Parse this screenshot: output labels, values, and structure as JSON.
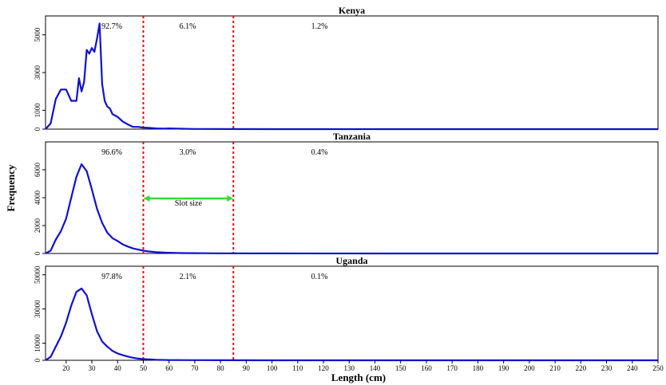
{
  "x_axis": {
    "label": "Length (cm)",
    "ticks": [
      "20",
      "30",
      "40",
      "50",
      "60",
      "70",
      "80",
      "90",
      "100",
      "110",
      "120",
      "130",
      "140",
      "150",
      "160",
      "170",
      "180",
      "190",
      "200",
      "210",
      "220",
      "230",
      "240",
      "250"
    ]
  },
  "y_axis": {
    "label": "Frequency"
  },
  "slot_label": "Slot size",
  "chart_data": [
    {
      "type": "line",
      "title": "Kenya",
      "xlim": [
        12,
        250
      ],
      "ylim": [
        0,
        6000
      ],
      "yticks": [
        "0",
        "1000",
        "3000",
        "5000"
      ],
      "ytick_values": [
        0,
        1000,
        3000,
        5000
      ],
      "slot_lines": [
        50,
        85
      ],
      "percent_labels": [
        "92.7%",
        "6.1%",
        "1.2%"
      ],
      "series": [
        {
          "color": "#1010d0",
          "x": [
            12,
            14,
            16,
            18,
            20,
            22,
            24,
            25,
            26,
            27,
            28,
            29,
            30,
            31,
            32,
            33,
            34,
            35,
            36,
            37,
            38,
            40,
            42,
            44,
            46,
            48,
            50,
            52,
            55,
            58,
            60,
            65,
            70,
            80,
            100,
            150,
            250
          ],
          "y": [
            0,
            300,
            1600,
            2100,
            2100,
            1500,
            1500,
            2700,
            2000,
            2500,
            4200,
            4000,
            4300,
            4100,
            4800,
            5600,
            2400,
            1500,
            1200,
            1100,
            800,
            650,
            400,
            250,
            120,
            120,
            80,
            70,
            40,
            30,
            40,
            20,
            10,
            5,
            2,
            0,
            0
          ]
        }
      ]
    },
    {
      "type": "line",
      "title": "Tanzania",
      "xlim": [
        12,
        250
      ],
      "ylim": [
        0,
        8000
      ],
      "yticks": [
        "0",
        "2000",
        "4000",
        "6000"
      ],
      "ytick_values": [
        0,
        2000,
        4000,
        6000
      ],
      "slot_lines": [
        50,
        85
      ],
      "percent_labels": [
        "96.6%",
        "3.0%",
        "0.4%"
      ],
      "series": [
        {
          "color": "#1010d0",
          "x": [
            12,
            14,
            16,
            18,
            20,
            22,
            24,
            26,
            28,
            30,
            32,
            34,
            36,
            38,
            40,
            42,
            44,
            46,
            48,
            50,
            52,
            55,
            58,
            60,
            65,
            70,
            80,
            100,
            150,
            250
          ],
          "y": [
            0,
            200,
            1000,
            1600,
            2500,
            4000,
            5500,
            6400,
            5900,
            4600,
            3200,
            2200,
            1500,
            1100,
            900,
            650,
            500,
            360,
            280,
            200,
            150,
            100,
            70,
            50,
            30,
            20,
            10,
            5,
            2,
            0
          ]
        }
      ]
    },
    {
      "type": "line",
      "title": "Uganda",
      "xlim": [
        12,
        250
      ],
      "ylim": [
        0,
        55000
      ],
      "yticks": [
        "0",
        "10000",
        "30000",
        "50000"
      ],
      "ytick_values": [
        0,
        10000,
        30000,
        50000
      ],
      "slot_lines": [
        50,
        85
      ],
      "percent_labels": [
        "97.8%",
        "2.1%",
        "0.1%"
      ],
      "series": [
        {
          "color": "#1010d0",
          "x": [
            12,
            14,
            16,
            18,
            20,
            22,
            24,
            26,
            28,
            30,
            32,
            34,
            36,
            38,
            40,
            42,
            44,
            46,
            48,
            50,
            52,
            55,
            60,
            70,
            80,
            100,
            150,
            250
          ],
          "y": [
            0,
            2000,
            8000,
            14000,
            22000,
            32000,
            40000,
            42000,
            38000,
            27000,
            17000,
            11000,
            8000,
            5500,
            4000,
            3000,
            2200,
            1500,
            1000,
            700,
            500,
            300,
            150,
            80,
            30,
            10,
            0,
            0
          ]
        }
      ]
    }
  ]
}
